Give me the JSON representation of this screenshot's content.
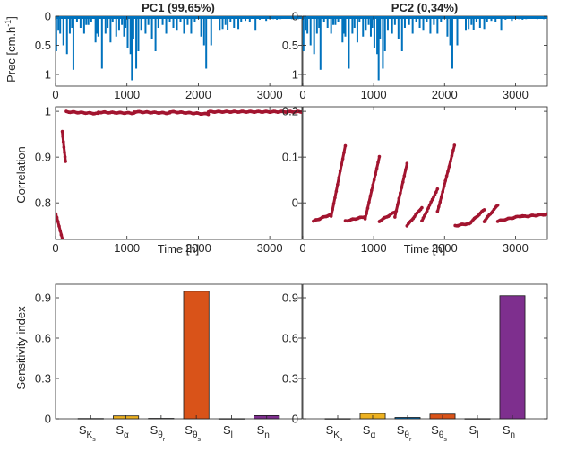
{
  "chart_data": [
    {
      "id": "prec_pc1",
      "type": "bar",
      "title": "PC1 (99,65%)",
      "ylabel": "Prec [cm.h",
      "ylabel_sup": "-1",
      "ylabel_tail": "]",
      "y_reversed": true,
      "xlim": [
        0,
        3450
      ],
      "ylim": [
        0,
        1.2
      ],
      "xticks": [
        0,
        1000,
        2000,
        3000
      ],
      "yticks": [
        0,
        0.5,
        1
      ],
      "ytick_labels": [
        "0",
        "0.5",
        "1"
      ],
      "color": "#0072BD",
      "spikes": [
        [
          10,
          0.6
        ],
        [
          40,
          0.25
        ],
        [
          65,
          0.3
        ],
        [
          110,
          0.5
        ],
        [
          160,
          0.65
        ],
        [
          200,
          0.3
        ],
        [
          230,
          0.2
        ],
        [
          250,
          0.92
        ],
        [
          300,
          0.1
        ],
        [
          350,
          0.2
        ],
        [
          400,
          0.3
        ],
        [
          430,
          0.15
        ],
        [
          460,
          0.15
        ],
        [
          500,
          0.1
        ],
        [
          560,
          0.45
        ],
        [
          580,
          0.3
        ],
        [
          600,
          0.35
        ],
        [
          650,
          0.9
        ],
        [
          700,
          0.3
        ],
        [
          730,
          0.2
        ],
        [
          770,
          0.45
        ],
        [
          800,
          0.1
        ],
        [
          850,
          0.35
        ],
        [
          890,
          0.25
        ],
        [
          930,
          0.15
        ],
        [
          960,
          0.35
        ],
        [
          980,
          0.2
        ],
        [
          1010,
          0.55
        ],
        [
          1050,
          0.65
        ],
        [
          1070,
          1.1
        ],
        [
          1090,
          0.4
        ],
        [
          1130,
          0.9
        ],
        [
          1160,
          0.6
        ],
        [
          1200,
          0.25
        ],
        [
          1260,
          0.3
        ],
        [
          1300,
          0.15
        ],
        [
          1350,
          0.4
        ],
        [
          1400,
          0.6
        ],
        [
          1440,
          0.2
        ],
        [
          1500,
          0.15
        ],
        [
          1550,
          0.3
        ],
        [
          1600,
          0.1
        ],
        [
          1650,
          0.2
        ],
        [
          1700,
          0.25
        ],
        [
          1750,
          0.1
        ],
        [
          1800,
          0.3
        ],
        [
          1850,
          0.15
        ],
        [
          1900,
          0.3
        ],
        [
          1950,
          0.1
        ],
        [
          2040,
          0.35
        ],
        [
          2080,
          0.5
        ],
        [
          2110,
          0.9
        ],
        [
          2180,
          0.5
        ],
        [
          2300,
          0.25
        ],
        [
          2340,
          0.22
        ],
        [
          2380,
          0.15
        ],
        [
          2410,
          0.24
        ],
        [
          2450,
          0.1
        ],
        [
          2500,
          0.2
        ],
        [
          2560,
          0.22
        ],
        [
          2600,
          0.1
        ],
        [
          2660,
          0.08
        ],
        [
          2720,
          0.1
        ],
        [
          2800,
          0.25
        ],
        [
          2860,
          0.06
        ],
        [
          2950,
          0.08
        ],
        [
          3050,
          0.05
        ],
        [
          3100,
          0.06
        ],
        [
          3150,
          0.05
        ],
        [
          3230,
          0.04
        ],
        [
          3310,
          0.05
        ],
        [
          3400,
          0.05
        ]
      ]
    },
    {
      "id": "prec_pc2",
      "type": "bar",
      "title": "PC2 (0,34%)",
      "y_reversed": true,
      "xlim": [
        0,
        3450
      ],
      "ylim": [
        0,
        1.2
      ],
      "xticks": [
        0,
        1000,
        2000,
        3000
      ],
      "yticks": [
        0,
        0.5,
        1
      ],
      "ytick_labels": [
        "0",
        "0.5",
        "1"
      ],
      "color": "#0072BD"
    },
    {
      "id": "corr_pc1",
      "type": "scatter",
      "ylabel": "Correlation",
      "xlabel": "Time [h]",
      "xlim": [
        0,
        3450
      ],
      "ylim": [
        0.72,
        1.01
      ],
      "xticks": [
        0,
        1000,
        2000,
        3000
      ],
      "yticks": [
        0.8,
        0.9,
        1
      ],
      "ytick_labels": [
        "0.8",
        "0.9",
        "1"
      ],
      "color": "#A2142F",
      "segments": [
        {
          "x": [
            5,
            95
          ],
          "y": [
            0.776,
            0.722
          ]
        },
        {
          "x": [
            95,
            140
          ],
          "y": [
            0.955,
            0.89
          ]
        },
        {
          "x": [
            150,
            600
          ],
          "y": [
            0.999,
            0.995
          ]
        },
        {
          "x": [
            600,
            1100
          ],
          "y": [
            0.998,
            0.996
          ]
        },
        {
          "x": [
            1100,
            1600
          ],
          "y": [
            0.999,
            0.996
          ]
        },
        {
          "x": [
            1600,
            2140
          ],
          "y": [
            0.999,
            0.994
          ]
        },
        {
          "x": [
            2140,
            3450
          ],
          "y": [
            0.999,
            0.999
          ]
        }
      ]
    },
    {
      "id": "corr_pc2",
      "type": "scatter",
      "xlabel": "Time [h]",
      "xlim": [
        0,
        3450
      ],
      "ylim": [
        -0.08,
        0.21
      ],
      "xticks": [
        0,
        1000,
        2000,
        3000
      ],
      "yticks": [
        0,
        0.1,
        0.2
      ],
      "ytick_labels": [
        "0",
        "0.1",
        "0.2"
      ],
      "color": "#A2142F",
      "segments": [
        {
          "x": [
            150,
            400
          ],
          "y": [
            -0.04,
            -0.025
          ]
        },
        {
          "x": [
            400,
            600
          ],
          "y": [
            -0.03,
            0.125
          ]
        },
        {
          "x": [
            600,
            880
          ],
          "y": [
            -0.04,
            -0.03
          ]
        },
        {
          "x": [
            880,
            1080
          ],
          "y": [
            -0.035,
            0.1
          ]
        },
        {
          "x": [
            1080,
            1300
          ],
          "y": [
            -0.04,
            -0.02
          ]
        },
        {
          "x": [
            1300,
            1470
          ],
          "y": [
            -0.03,
            0.085
          ]
        },
        {
          "x": [
            1470,
            1680
          ],
          "y": [
            -0.05,
            -0.01
          ]
        },
        {
          "x": [
            1680,
            1900
          ],
          "y": [
            -0.04,
            0.03
          ]
        },
        {
          "x": [
            1900,
            2140
          ],
          "y": [
            -0.02,
            0.125
          ]
        },
        {
          "x": [
            2150,
            2350
          ],
          "y": [
            -0.05,
            -0.045
          ]
        },
        {
          "x": [
            2350,
            2560
          ],
          "y": [
            -0.045,
            -0.015
          ]
        },
        {
          "x": [
            2560,
            2750
          ],
          "y": [
            -0.04,
            -0.005
          ]
        },
        {
          "x": [
            2750,
            3100
          ],
          "y": [
            -0.04,
            -0.028
          ]
        },
        {
          "x": [
            3100,
            3450
          ],
          "y": [
            -0.03,
            -0.025
          ]
        }
      ]
    },
    {
      "id": "sens_pc1",
      "type": "bar",
      "ylabel": "Sensitivity index",
      "ylim": [
        0,
        1.0
      ],
      "yticks": [
        0,
        0.3,
        0.6,
        0.9
      ],
      "ytick_labels": [
        "0",
        "0.3",
        "0.6",
        "0.9"
      ],
      "categories": [
        "S_Ks",
        "S_α",
        "S_θr",
        "S_θs",
        "S_l",
        "S_n"
      ],
      "values": [
        0.002,
        0.022,
        0.003,
        0.948,
        0.001,
        0.024
      ],
      "colors": [
        "#0072BD",
        "#EDB120",
        "#0072BD",
        "#D95319",
        "#0072BD",
        "#7E2F8E"
      ]
    },
    {
      "id": "sens_pc2",
      "type": "bar",
      "ylim": [
        0,
        1.0
      ],
      "yticks": [
        0,
        0.3,
        0.6,
        0.9
      ],
      "ytick_labels": [
        "0",
        "0.3",
        "0.6",
        "0.9"
      ],
      "categories": [
        "S_Ks",
        "S_α",
        "S_θr",
        "S_θs",
        "S_l",
        "S_n"
      ],
      "values": [
        0.001,
        0.04,
        0.01,
        0.035,
        0.001,
        0.915
      ],
      "colors": [
        "#0072BD",
        "#EDB120",
        "#0072BD",
        "#D95319",
        "#0072BD",
        "#7E2F8E"
      ]
    }
  ],
  "category_labels": [
    {
      "base": "S",
      "sub": "K",
      "subsub": "s"
    },
    {
      "base": "S",
      "sub": "α"
    },
    {
      "base": "S",
      "sub": "θ",
      "subsub": "r"
    },
    {
      "base": "S",
      "sub": "θ",
      "subsub": "s"
    },
    {
      "base": "S",
      "sub": "l"
    },
    {
      "base": "S",
      "sub": "n"
    }
  ]
}
